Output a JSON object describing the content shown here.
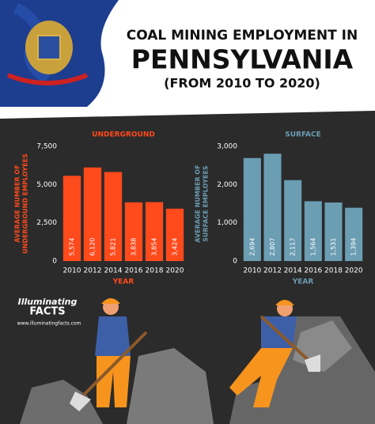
{
  "header": {
    "line1": "COAL MINING EMPLOYMENT IN",
    "line2": "PENNSYLVANIA",
    "line3": "(FROM 2010 TO 2020)"
  },
  "logo": {
    "line1": "Illuminating",
    "line2": "FACTS",
    "url": "www.illuminatingfacts.com"
  },
  "chart_data": [
    {
      "type": "bar",
      "title": "UNDERGROUND",
      "ylabel": [
        "AVERAGE NUMBER OF",
        "UNDERGROUND EMPLOYEES"
      ],
      "xlabel": "YEAR",
      "categories": [
        "2010",
        "2012",
        "2014",
        "2016",
        "2018",
        "2020"
      ],
      "values": [
        5574,
        6120,
        5821,
        3838,
        3854,
        3424
      ],
      "value_labels": [
        "5,574",
        "6,120",
        "5,821",
        "3,838",
        "3,854",
        "3,424"
      ],
      "color": "#ff4a1c",
      "ylim": [
        0,
        7500
      ],
      "yticks": [
        0,
        {
          "value": 2500,
          "label": "2,500"
        },
        {
          "value": 5000,
          "label": "5,000"
        },
        {
          "value": 7500,
          "label": "7,500"
        }
      ]
    },
    {
      "type": "bar",
      "title": "SURFACE",
      "ylabel": [
        "AVERAGE NUMBER OF",
        "SURFACE EMPLOYEES"
      ],
      "xlabel": "YEAR",
      "categories": [
        "2010",
        "2012",
        "2014",
        "2016",
        "2018",
        "2020"
      ],
      "values": [
        2694,
        2807,
        2117,
        1564,
        1531,
        1394
      ],
      "value_labels": [
        "2,694",
        "2,807",
        "2,117",
        "1,564",
        "1,531",
        "1,394"
      ],
      "color": "#6b9db3",
      "ylim": [
        0,
        3000
      ],
      "yticks": [
        0,
        {
          "value": 1000,
          "label": "1,000"
        },
        {
          "value": 2000,
          "label": "2,000"
        },
        {
          "value": 3000,
          "label": "3,000"
        }
      ]
    }
  ]
}
